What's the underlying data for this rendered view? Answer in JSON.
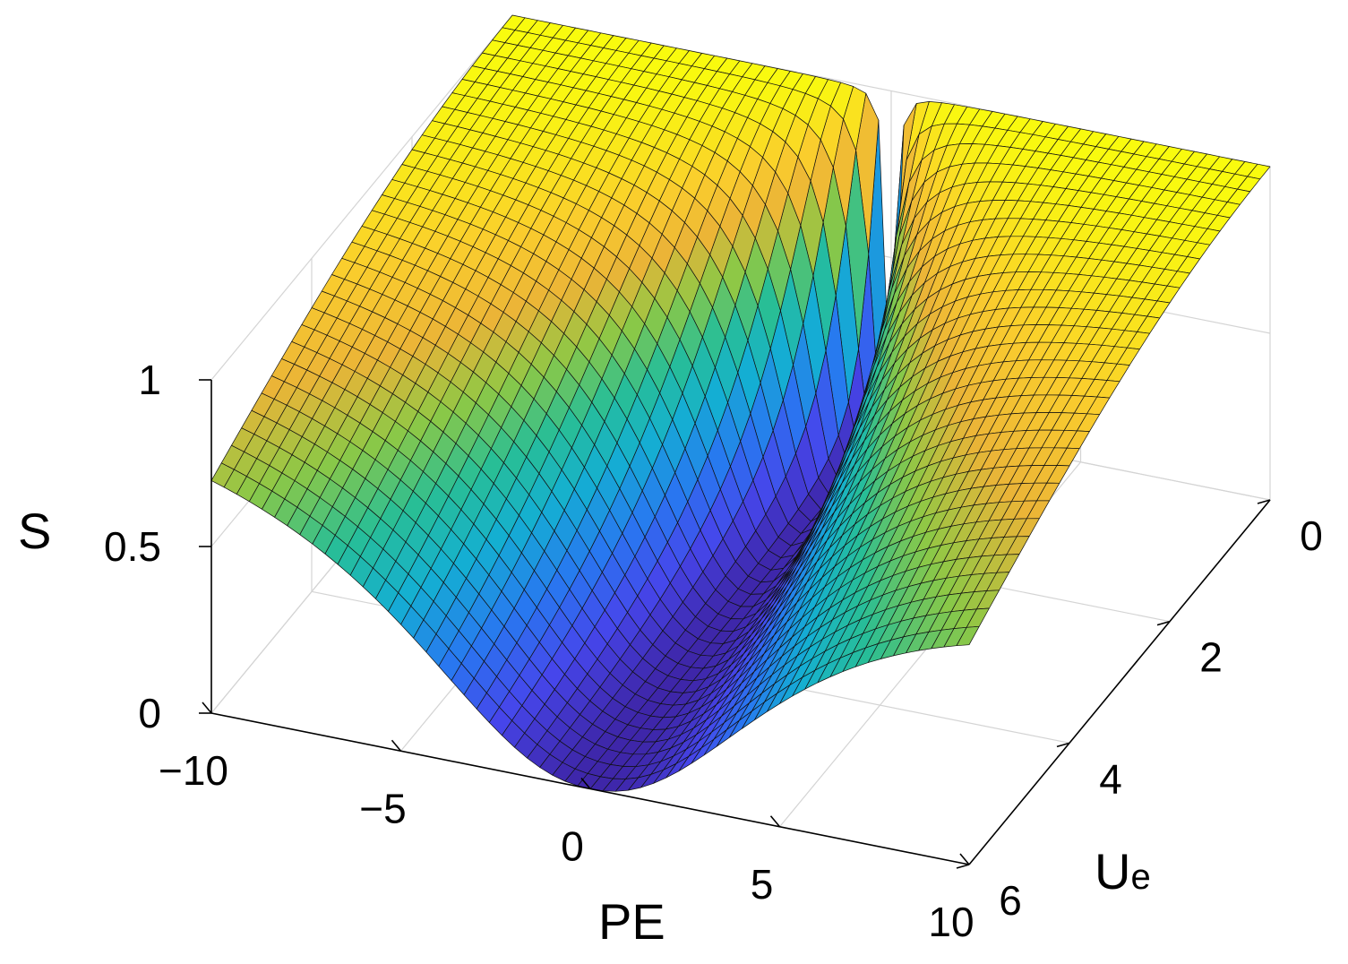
{
  "chart_data": {
    "type": "surface",
    "title": "",
    "xlabel": "PE",
    "ylabel_main": "U",
    "ylabel_sub": "e",
    "zlabel": "S",
    "xlim": [
      -10,
      10
    ],
    "ylim": [
      0,
      6
    ],
    "zlim": [
      0,
      1
    ],
    "x_ticks": [
      -10,
      -5,
      0,
      5,
      10
    ],
    "x_tick_labels": [
      "−10",
      "−5",
      "0",
      "5",
      "10"
    ],
    "y_ticks": [
      0,
      2,
      4,
      6
    ],
    "y_tick_labels": [
      "0",
      "2",
      "4",
      "6"
    ],
    "z_ticks": [
      0,
      0.5,
      1
    ],
    "z_tick_labels": [
      "0",
      "0.5",
      "1"
    ],
    "grid": true,
    "colormap": "parula",
    "colors": {
      "low": "#3e26a8",
      "mid": "#21b5a1",
      "high": "#f9fb0e",
      "mesh_edge": "#101010"
    },
    "mesh": {
      "pe_steps": 60,
      "ue_steps": 30
    },
    "surface_samples": {
      "pe": [
        -10,
        -5,
        0,
        5,
        10
      ],
      "ue": [
        0,
        3,
        6
      ],
      "s": [
        [
          1.0,
          1.0,
          0.0,
          1.0,
          1.0
        ],
        [
          0.97,
          0.78,
          0.17,
          0.72,
          0.92
        ],
        [
          0.86,
          0.48,
          0.0,
          0.42,
          0.76
        ]
      ]
    }
  }
}
